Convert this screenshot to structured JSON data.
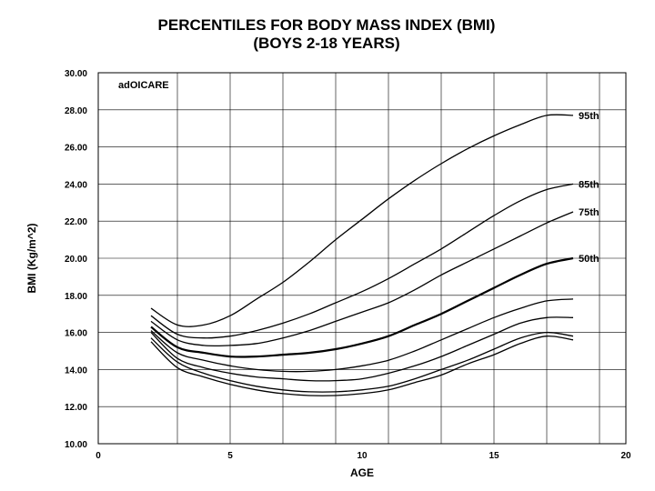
{
  "chart_data": {
    "type": "line",
    "title": "PERCENTILES FOR BODY MASS INDEX (BMI)",
    "subtitle": "(BOYS 2-18 YEARS)",
    "xlabel": "AGE",
    "ylabel": "BMI (Kg/m^2)",
    "annotation": "adOICARE",
    "xlim": [
      0,
      20
    ],
    "ylim": [
      10,
      30
    ],
    "x_ticks": [
      "0",
      "5",
      "10",
      "15",
      "20"
    ],
    "y_ticks": [
      "10.00",
      "12.00",
      "14.00",
      "16.00",
      "18.00",
      "20.00",
      "22.00",
      "24.00",
      "26.00",
      "28.00",
      "30.00"
    ],
    "grid": true,
    "x": [
      2,
      3,
      4,
      5,
      6,
      7,
      8,
      9,
      10,
      11,
      12,
      13,
      14,
      15,
      16,
      17,
      18
    ],
    "series": [
      {
        "name": "95th",
        "values": [
          17.3,
          16.4,
          16.4,
          16.9,
          17.8,
          18.7,
          19.8,
          21.0,
          22.1,
          23.2,
          24.2,
          25.1,
          25.9,
          26.6,
          27.2,
          27.7,
          27.7
        ]
      },
      {
        "name": "85th",
        "values": [
          16.9,
          15.9,
          15.7,
          15.8,
          16.1,
          16.5,
          17.0,
          17.6,
          18.2,
          18.9,
          19.7,
          20.5,
          21.4,
          22.3,
          23.1,
          23.7,
          24.0
        ]
      },
      {
        "name": "75th",
        "values": [
          16.6,
          15.6,
          15.3,
          15.3,
          15.4,
          15.7,
          16.1,
          16.6,
          17.1,
          17.6,
          18.3,
          19.1,
          19.8,
          20.5,
          21.2,
          21.9,
          22.5
        ]
      },
      {
        "name": "50th",
        "values": [
          16.3,
          15.2,
          14.9,
          14.7,
          14.7,
          14.8,
          14.9,
          15.1,
          15.4,
          15.8,
          16.4,
          17.0,
          17.7,
          18.4,
          19.1,
          19.7,
          20.0
        ]
      },
      {
        "name": "",
        "values": [
          16.1,
          14.9,
          14.5,
          14.2,
          14.0,
          13.9,
          13.9,
          14.0,
          14.2,
          14.5,
          15.0,
          15.6,
          16.2,
          16.8,
          17.3,
          17.7,
          17.8
        ]
      },
      {
        "name": "",
        "values": [
          16.0,
          14.6,
          14.1,
          13.8,
          13.6,
          13.5,
          13.4,
          13.4,
          13.5,
          13.8,
          14.2,
          14.7,
          15.3,
          15.9,
          16.5,
          16.8,
          16.8
        ]
      },
      {
        "name": "",
        "values": [
          15.7,
          14.4,
          13.8,
          13.4,
          13.1,
          12.9,
          12.8,
          12.8,
          12.9,
          13.1,
          13.5,
          14.0,
          14.5,
          15.1,
          15.7,
          16.0,
          15.8
        ]
      },
      {
        "name": "",
        "values": [
          15.5,
          14.1,
          13.6,
          13.2,
          12.9,
          12.7,
          12.6,
          12.6,
          12.7,
          12.9,
          13.3,
          13.7,
          14.3,
          14.8,
          15.4,
          15.8,
          15.6
        ]
      }
    ],
    "colors": {
      "line": "#000000",
      "grid": "#000000",
      "background": "#ffffff"
    }
  }
}
